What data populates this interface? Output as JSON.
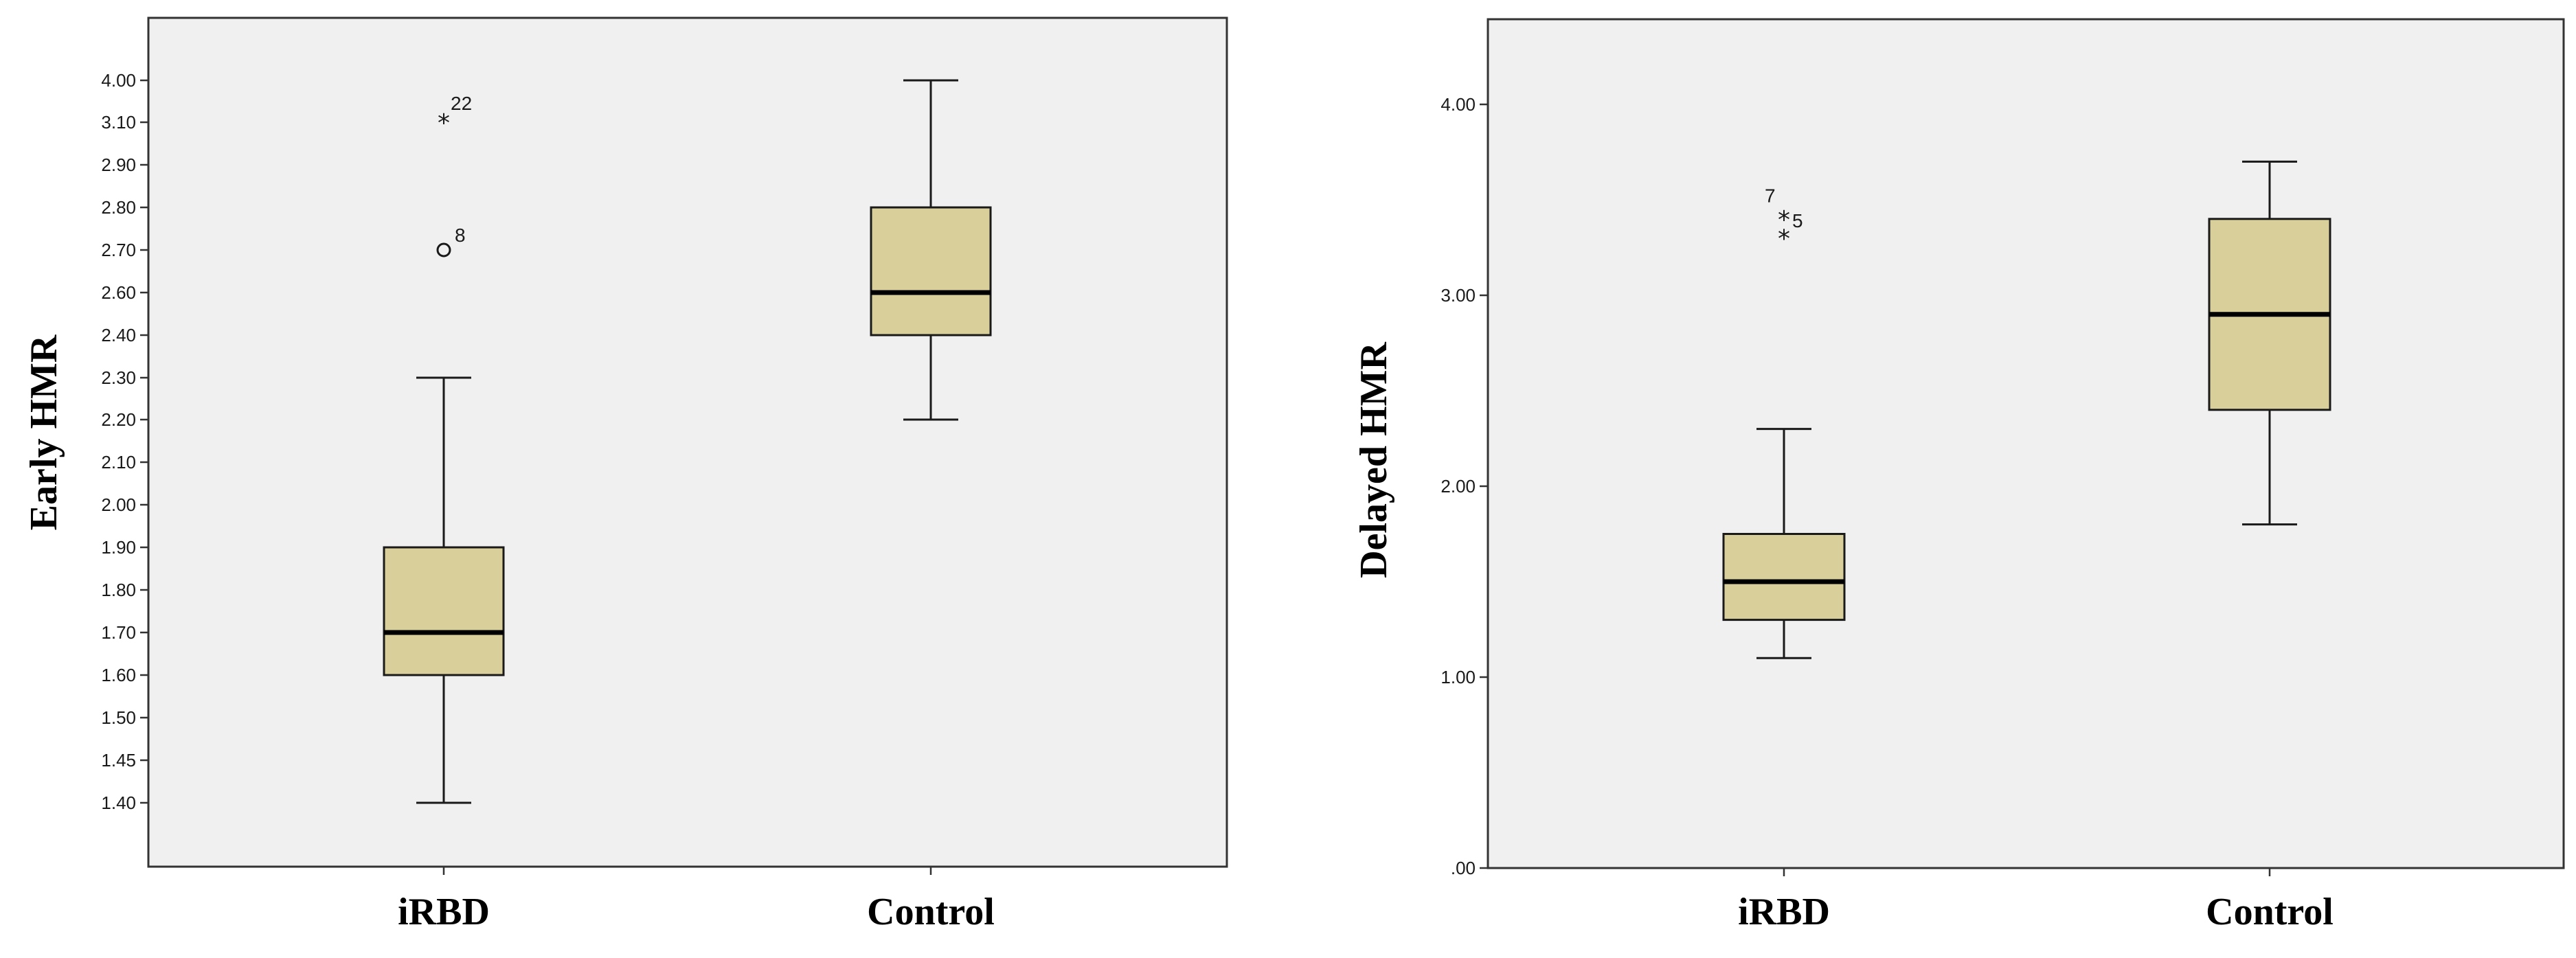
{
  "chart_data": [
    {
      "type": "box",
      "title": "",
      "xlabel": "",
      "ylabel": "Early HMR",
      "categories": [
        "iRBD",
        "Control"
      ],
      "y_tick_labels": [
        "4.00",
        "3.10",
        "2.90",
        "2.80",
        "2.70",
        "2.60",
        "2.40",
        "2.30",
        "2.20",
        "2.10",
        "2.00",
        "1.90",
        "1.80",
        "1.70",
        "1.60",
        "1.50",
        "1.45",
        "1.40"
      ],
      "box_color": "#d8cf9a",
      "boxes": [
        {
          "category": "iRBD",
          "min": 1.4,
          "q1": 1.6,
          "median": 1.7,
          "q3": 1.9,
          "max": 2.3
        },
        {
          "category": "Control",
          "min": 2.2,
          "q1": 2.4,
          "median": 2.6,
          "q3": 2.8,
          "max": 4.0
        }
      ],
      "outliers": [
        {
          "category": "iRBD",
          "value": 3.1,
          "label": "22",
          "marker": "star"
        },
        {
          "category": "iRBD",
          "value": 2.7,
          "label": "8",
          "marker": "circle"
        }
      ]
    },
    {
      "type": "box",
      "title": "",
      "xlabel": "",
      "ylabel": "Delayed HMR",
      "categories": [
        "iRBD",
        "Control"
      ],
      "ylim": [
        0,
        4.45
      ],
      "y_ticks": [
        0,
        1,
        2,
        3,
        4
      ],
      "y_tick_labels": [
        ".00",
        "1.00",
        "2.00",
        "3.00",
        "4.00"
      ],
      "box_color": "#d8cf9a",
      "boxes": [
        {
          "category": "iRBD",
          "min": 1.1,
          "q1": 1.3,
          "median": 1.5,
          "q3": 1.75,
          "max": 2.3
        },
        {
          "category": "Control",
          "min": 1.8,
          "q1": 2.4,
          "median": 2.9,
          "q3": 3.4,
          "max": 3.7
        }
      ],
      "outliers": [
        {
          "category": "iRBD",
          "value": 3.4,
          "label": "5",
          "marker": "star"
        },
        {
          "category": "iRBD",
          "value": 3.3,
          "label": "7",
          "marker": "star"
        }
      ]
    }
  ]
}
